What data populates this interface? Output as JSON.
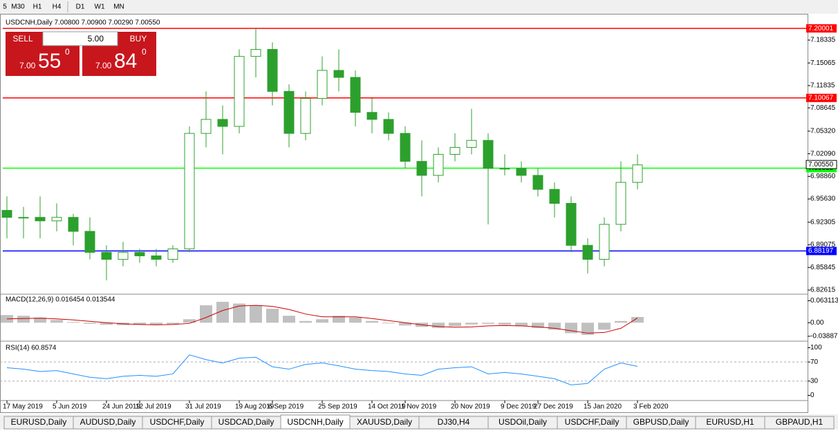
{
  "toolbar": {
    "timeframes": [
      "5",
      "M30",
      "H1",
      "H4",
      "D1",
      "W1",
      "MN"
    ]
  },
  "chart_header": "USDCNH,Daily  7.00800 7.00900 7.00290 7.00550",
  "trade_panel": {
    "sell": "SELL",
    "buy": "BUY",
    "lots": "5.00",
    "sell_price": {
      "big": "7.00",
      "pips": "55",
      "point": "0"
    },
    "buy_price": {
      "big": "7.00",
      "pips": "84",
      "point": "0"
    }
  },
  "chart_data": [
    {
      "type": "candlestick",
      "name": "price",
      "categories": [
        "17 May 2019",
        null,
        null,
        "5 Jun 2019",
        null,
        null,
        "24 Jun 2019",
        null,
        "12 Jul 2019",
        null,
        null,
        "31 Jul 2019",
        null,
        null,
        "19 Aug 2019",
        null,
        "6 Sep 2019",
        null,
        null,
        "25 Sep 2019",
        null,
        null,
        "14 Oct 2019",
        null,
        "1 Nov 2019",
        null,
        null,
        "20 Nov 2019",
        null,
        null,
        "9 Dec 2019",
        null,
        "27 Dec 2019",
        null,
        null,
        "15 Jan 2020",
        null,
        null,
        "3 Feb 2020"
      ],
      "open": [
        6.94,
        6.93,
        6.93,
        6.925,
        6.93,
        6.91,
        6.88,
        6.87,
        6.88,
        6.875,
        6.87,
        6.885,
        7.05,
        7.07,
        7.06,
        7.16,
        7.17,
        7.11,
        7.05,
        7.1,
        7.14,
        7.13,
        7.08,
        7.07,
        7.05,
        7.01,
        6.99,
        7.02,
        7.03,
        7.04,
        7.0,
        7.0,
        6.99,
        6.97,
        6.95,
        6.89,
        6.87,
        6.92,
        6.98
      ],
      "high": [
        6.96,
        6.945,
        6.96,
        6.95,
        6.935,
        6.93,
        6.89,
        6.895,
        6.885,
        6.885,
        6.89,
        7.06,
        7.11,
        7.09,
        7.17,
        7.2,
        7.18,
        7.12,
        7.11,
        7.16,
        7.17,
        7.14,
        7.1,
        7.08,
        7.06,
        7.04,
        7.03,
        7.05,
        7.085,
        7.05,
        7.02,
        7.01,
        7.0,
        6.98,
        6.96,
        6.9,
        6.93,
        7.01,
        7.02
      ],
      "low": [
        6.9,
        6.9,
        6.9,
        6.91,
        6.89,
        6.87,
        6.84,
        6.86,
        6.865,
        6.86,
        6.865,
        6.88,
        7.03,
        7.02,
        7.05,
        7.13,
        7.09,
        7.03,
        7.04,
        7.09,
        7.11,
        7.06,
        7.05,
        7.04,
        7.0,
        6.96,
        6.98,
        7.01,
        7.02,
        6.92,
        6.99,
        6.98,
        6.96,
        6.93,
        6.88,
        6.85,
        6.86,
        6.91,
        6.97
      ],
      "close": [
        6.93,
        6.93,
        6.925,
        6.93,
        6.91,
        6.88,
        6.87,
        6.88,
        6.875,
        6.87,
        6.885,
        7.05,
        7.07,
        7.06,
        7.16,
        7.17,
        7.11,
        7.05,
        7.1,
        7.14,
        7.13,
        7.08,
        7.07,
        7.05,
        7.01,
        6.99,
        7.02,
        7.03,
        7.04,
        7.0,
        7.0,
        6.99,
        6.97,
        6.95,
        6.89,
        6.87,
        6.92,
        6.98,
        7.005
      ],
      "color": "#2ca02c",
      "ylim": [
        6.8212,
        7.211
      ],
      "yticks": [
        7.18335,
        7.15065,
        7.11835,
        7.08645,
        {
          "value": 7.0532,
          "label": "7.05320"
        },
        {
          "value": 7.0209,
          "label": "7.02090"
        },
        {
          "value": 6.9886,
          "label": "6.98860"
        },
        {
          "value": 6.9563,
          "label": "6.95630"
        },
        6.92305,
        6.89075,
        6.85845,
        6.82615
      ],
      "levels": [
        {
          "value": 7.20001,
          "color": "#ff0000"
        },
        {
          "value": 7.10067,
          "color": "#ff0000"
        },
        {
          "value": 7.00035,
          "color": "#00ff00"
        },
        {
          "value": 6.88197,
          "color": "#0000ff"
        }
      ],
      "last_price": {
        "value": 7.0055,
        "label": "7.00550"
      }
    },
    {
      "type": "macd",
      "title": "MACD(12,26,9) 0.016454 0.013544",
      "values": [
        0.022,
        0.02,
        0.015,
        0.008,
        0.002,
        -0.003,
        -0.006,
        -0.007,
        -0.006,
        -0.005,
        -0.004,
        0.01,
        0.05,
        0.06,
        0.055,
        0.05,
        0.04,
        0.02,
        0.005,
        0.01,
        0.02,
        0.015,
        0.005,
        -0.002,
        -0.008,
        -0.012,
        -0.015,
        -0.01,
        -0.005,
        -0.003,
        -0.006,
        -0.01,
        -0.015,
        -0.02,
        -0.03,
        -0.035,
        -0.02,
        0.005,
        0.016454
      ],
      "signal": [
        0.011,
        0.012,
        0.013,
        0.011,
        0.008,
        0.004,
        0,
        -0.003,
        -0.005,
        -0.006,
        -0.005,
        -0.002,
        0.015,
        0.035,
        0.048,
        0.05,
        0.047,
        0.038,
        0.025,
        0.017,
        0.017,
        0.017,
        0.012,
        0.006,
        0,
        -0.006,
        -0.011,
        -0.013,
        -0.012,
        -0.009,
        -0.008,
        -0.009,
        -0.012,
        -0.016,
        -0.023,
        -0.03,
        -0.028,
        -0.016,
        0.013544
      ],
      "color": "#c0c0c0",
      "signal_color": "#cc0000",
      "ylim": [
        -0.045,
        0.07
      ],
      "yticks": [
        0.063113,
        {
          "value": 0,
          "label": "0.00"
        },
        -0.038872
      ]
    },
    {
      "type": "rsi",
      "title": "RSI(14) 60.8574",
      "values": [
        58,
        55,
        50,
        52,
        45,
        38,
        35,
        40,
        42,
        40,
        45,
        85,
        75,
        68,
        78,
        80,
        60,
        55,
        65,
        68,
        62,
        55,
        52,
        50,
        45,
        42,
        55,
        58,
        60,
        45,
        48,
        45,
        40,
        35,
        22,
        25,
        55,
        68,
        60.8574
      ],
      "color": "#1e90ff",
      "ylim": [
        -5,
        105
      ],
      "yticks": [
        100,
        70,
        30,
        0
      ],
      "levels": [
        70,
        30
      ]
    }
  ],
  "tabs": [
    "EURUSD,Daily",
    "AUDUSD,Daily",
    "USDCHF,Daily",
    "USDCAD,Daily",
    "USDCNH,Daily",
    "XAUUSD,Daily",
    "DJ30,H4",
    "USDOil,Daily",
    "USDCHF,Daily",
    "GBPUSD,Daily",
    "EURUSD,H1",
    "GBPAUD,H1"
  ],
  "active_tab": 4
}
